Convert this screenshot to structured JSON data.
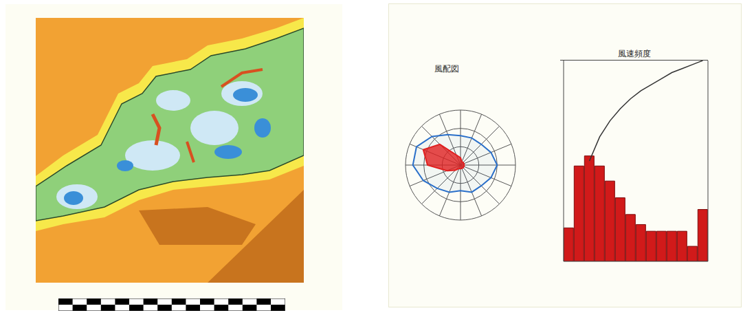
{
  "chart_data": [
    {
      "type": "radar",
      "title": "風配図",
      "categories": [
        null,
        null,
        null,
        null,
        null,
        null,
        null,
        null,
        null,
        null,
        null,
        null,
        null,
        null,
        null,
        null
      ],
      "series": [
        {
          "color": "#2a6fc9",
          "values": [
            8,
            8,
            8,
            9,
            10,
            9,
            8,
            8,
            7,
            8,
            9,
            11,
            13,
            13,
            11,
            9
          ]
        },
        {
          "color": "#e02020",
          "values": [
            2,
            1,
            1,
            1,
            1,
            1,
            1,
            1,
            1,
            1,
            2,
            4,
            9,
            11,
            8,
            3
          ]
        }
      ],
      "ylim": [
        0,
        15
      ],
      "yticks": [
        0,
        5,
        10,
        15
      ],
      "tick_labels": false,
      "grid": true
    },
    {
      "type": "bar",
      "title": "風速頻度",
      "categories": [
        null,
        null,
        null,
        null,
        null,
        null,
        null,
        null,
        null,
        null,
        null,
        null,
        null,
        null
      ],
      "series": [
        {
          "type": "bar",
          "color": "#d11a1a",
          "values": [
            2.0,
            5.7,
            6.3,
            5.7,
            4.8,
            3.8,
            2.8,
            2.2,
            1.8,
            1.8,
            1.8,
            1.8,
            0.9,
            3.1
          ]
        },
        {
          "type": "line",
          "color": "#333333",
          "axis": "y2",
          "values": [
            null,
            null,
            50,
            62,
            70,
            76,
            81,
            85,
            88,
            91,
            94,
            96,
            98,
            100
          ]
        }
      ],
      "ylim": [
        0,
        12
      ],
      "yticks": [
        0,
        2,
        4,
        6,
        8,
        10,
        12
      ],
      "y2lim": [
        0,
        100
      ],
      "y2ticks": [
        0,
        20,
        40,
        60,
        80,
        100
      ],
      "tick_labels": false
    }
  ]
}
